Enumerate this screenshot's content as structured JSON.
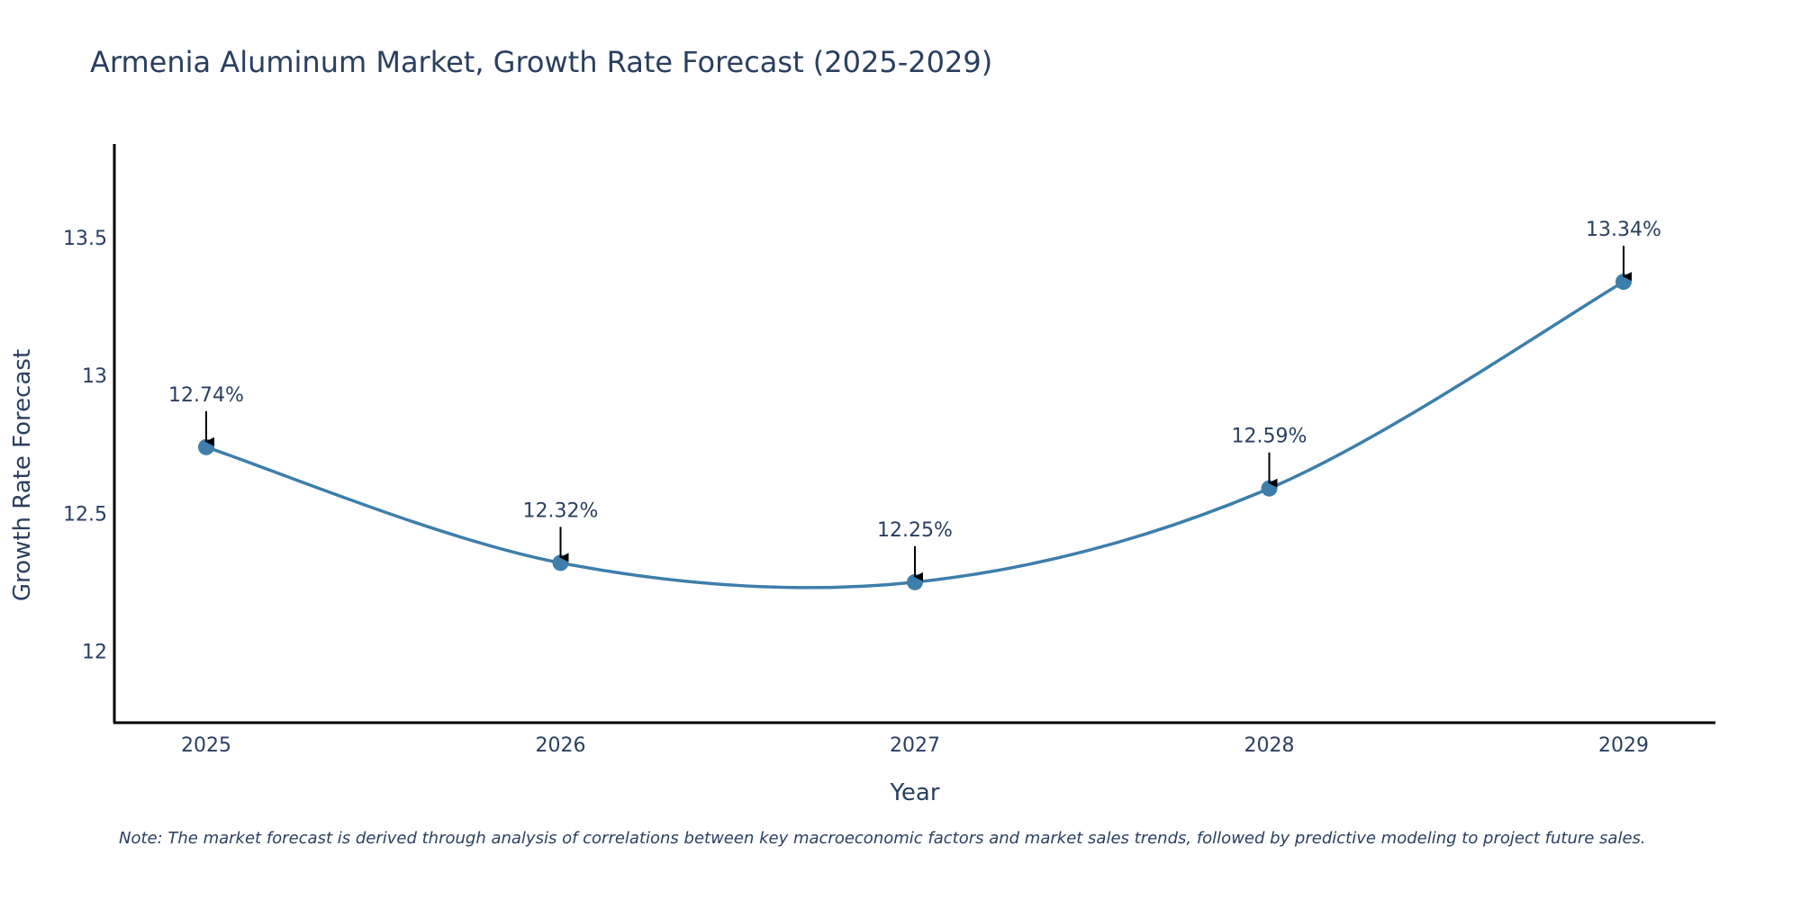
{
  "chart_data": {
    "type": "line",
    "title": "Armenia Aluminum Market, Growth Rate Forecast (2025-2029)",
    "xlabel": "Year",
    "ylabel": "Growth Rate Forecast",
    "categories": [
      "2025",
      "2026",
      "2027",
      "2028",
      "2029"
    ],
    "series": [
      {
        "name": "Growth Rate Forecast",
        "values": [
          12.74,
          12.32,
          12.25,
          12.59,
          13.34
        ],
        "labels": [
          "12.74%",
          "12.32%",
          "12.25%",
          "12.59%",
          "13.34%"
        ],
        "color": "#3d7eaa",
        "line_shape": "spline"
      }
    ],
    "y_ticks": [
      12,
      12.5,
      13,
      13.5
    ],
    "y_tick_labels": [
      "12",
      "12.5",
      "13",
      "13.5"
    ],
    "ylim": [
      11.74,
      13.84
    ],
    "grid": false,
    "note": "Note: The market forecast is derived through analysis of correlations between key macroeconomic factors and market sales trends, followed by predictive modeling to project future sales."
  }
}
